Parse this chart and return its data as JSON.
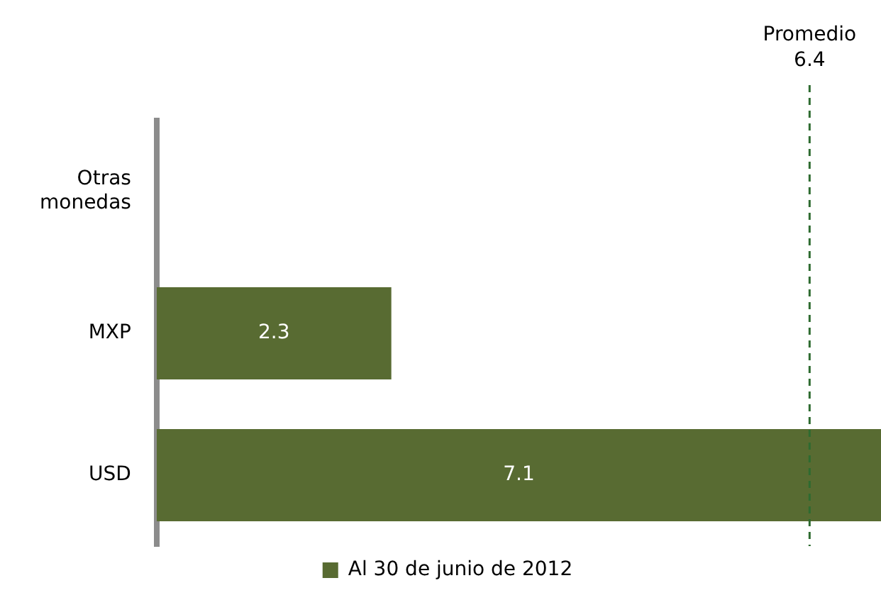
{
  "chart_data": {
    "type": "bar",
    "orientation": "horizontal",
    "categories": [
      "Otras monedas",
      "MXP",
      "USD"
    ],
    "series": [
      {
        "name": "Al 30 de junio de 2012",
        "color": "#586b32",
        "values": [
          null,
          2.3,
          7.1
        ]
      }
    ],
    "xlim": [
      0,
      7.1
    ],
    "tick_labels": "y",
    "data_labels": true,
    "legend": "bottom",
    "ref_lines": [
      {
        "axis": "x",
        "value": 6.4,
        "label": "Promedio 6.4",
        "color": "#2e6b30",
        "line_style": "dashed"
      }
    ]
  }
}
